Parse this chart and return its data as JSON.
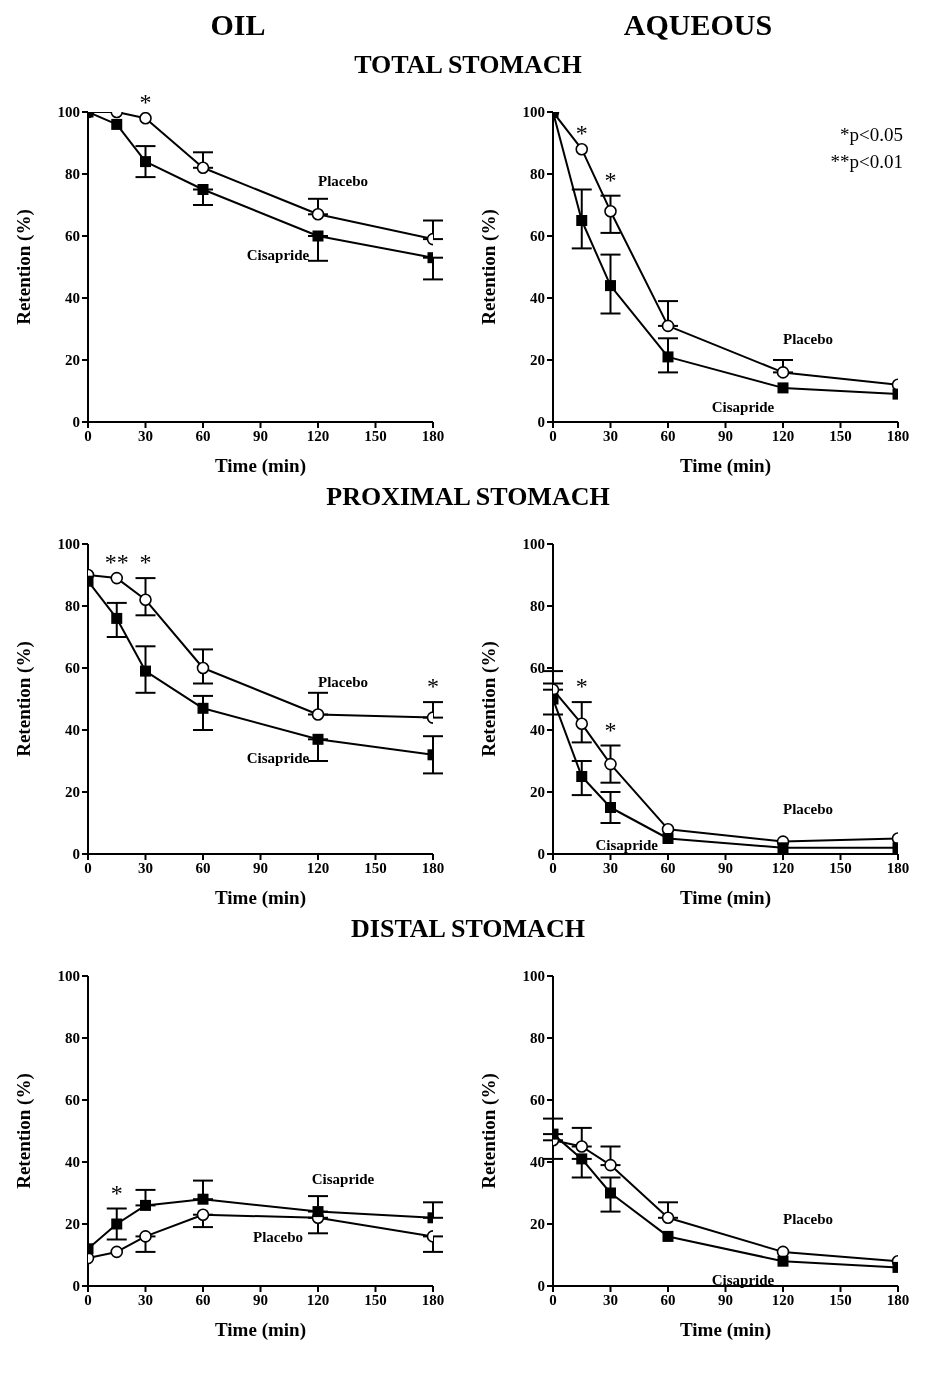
{
  "chart_data": [
    {
      "type": "line",
      "subtitle": "OIL",
      "title": "TOTAL STOMACH",
      "xlabel": "Time (min)",
      "ylabel": "Retention (%)",
      "x": [
        0,
        15,
        30,
        60,
        120,
        180
      ],
      "xlim": [
        0,
        180
      ],
      "xticks": [
        0,
        30,
        60,
        90,
        120,
        150,
        180
      ],
      "ylim": [
        0,
        100
      ],
      "yticks": [
        0,
        20,
        40,
        60,
        80,
        100
      ],
      "series": [
        {
          "name": "Placebo",
          "color": "#000000",
          "marker": "circle",
          "values": [
            100,
            100,
            98,
            82,
            67,
            59
          ],
          "errors": [
            null,
            null,
            null,
            [
              82,
              87
            ],
            [
              67,
              72
            ],
            [
              59,
              65
            ]
          ]
        },
        {
          "name": "Cisapride",
          "color": "#000000",
          "marker": "square",
          "values": [
            100,
            96,
            84,
            75,
            60,
            53
          ],
          "errors": [
            null,
            null,
            [
              79,
              89
            ],
            [
              70,
              75
            ],
            [
              52,
              60
            ],
            [
              46,
              53
            ]
          ]
        }
      ],
      "annotations": [
        {
          "text": "*",
          "x": 30,
          "y": 98
        }
      ]
    },
    {
      "type": "line",
      "subtitle": "AQUEOUS",
      "xlabel": "Time (min)",
      "ylabel": "Retention (%)",
      "x": [
        0,
        15,
        30,
        60,
        120,
        180
      ],
      "xlim": [
        0,
        180
      ],
      "xticks": [
        0,
        30,
        60,
        90,
        120,
        150,
        180
      ],
      "ylim": [
        0,
        100
      ],
      "yticks": [
        0,
        20,
        40,
        60,
        80,
        100
      ],
      "series": [
        {
          "name": "Placebo",
          "color": "#000000",
          "marker": "circle",
          "values": [
            100,
            88,
            68,
            31,
            16,
            12
          ],
          "errors": [
            null,
            null,
            [
              61,
              73
            ],
            [
              31,
              39
            ],
            [
              16,
              20
            ],
            null
          ]
        },
        {
          "name": "Cisapride",
          "color": "#000000",
          "marker": "square",
          "values": [
            100,
            65,
            44,
            21,
            11,
            9
          ],
          "errors": [
            null,
            [
              56,
              75
            ],
            [
              35,
              54
            ],
            [
              16,
              27
            ],
            null,
            null
          ]
        }
      ],
      "annotations": [
        {
          "text": "*",
          "x": 15,
          "y": 88
        },
        {
          "text": "*",
          "x": 30,
          "y": 68
        },
        "*p<0.05",
        "**p<0.01"
      ]
    },
    {
      "type": "line",
      "title": "PROXIMAL STOMACH",
      "xlabel": "Time (min)",
      "ylabel": "Retention (%)",
      "x": [
        0,
        15,
        30,
        60,
        120,
        180
      ],
      "xlim": [
        0,
        180
      ],
      "xticks": [
        0,
        30,
        60,
        90,
        120,
        150,
        180
      ],
      "ylim": [
        0,
        100
      ],
      "yticks": [
        0,
        20,
        40,
        60,
        80,
        100
      ],
      "series": [
        {
          "name": "Placebo",
          "color": "#000000",
          "marker": "circle",
          "values": [
            90,
            89,
            82,
            60,
            45,
            44
          ],
          "errors": [
            null,
            null,
            [
              77,
              89
            ],
            [
              55,
              66
            ],
            [
              45,
              52
            ],
            [
              44,
              49
            ]
          ]
        },
        {
          "name": "Cisapride",
          "color": "#000000",
          "marker": "square",
          "values": [
            88,
            76,
            59,
            47,
            37,
            32
          ],
          "errors": [
            null,
            [
              70,
              81
            ],
            [
              52,
              67
            ],
            [
              40,
              51
            ],
            [
              30,
              37
            ],
            [
              26,
              38
            ]
          ]
        }
      ],
      "annotations": [
        {
          "text": "**",
          "x": 15,
          "y": 89
        },
        {
          "text": "*",
          "x": 30,
          "y": 82
        },
        {
          "text": "*",
          "x": 180,
          "y": 44
        }
      ]
    },
    {
      "type": "line",
      "xlabel": "Time (min)",
      "ylabel": "Retention (%)",
      "x": [
        0,
        15,
        30,
        60,
        120,
        180
      ],
      "xlim": [
        0,
        180
      ],
      "xticks": [
        0,
        30,
        60,
        90,
        120,
        150,
        180
      ],
      "ylim": [
        0,
        100
      ],
      "yticks": [
        0,
        20,
        40,
        60,
        80,
        100
      ],
      "series": [
        {
          "name": "Placebo",
          "color": "#000000",
          "marker": "circle",
          "values": [
            53,
            42,
            29,
            8,
            4,
            5
          ],
          "errors": [
            [
              53,
              59
            ],
            [
              36,
              49
            ],
            [
              23,
              35
            ],
            null,
            null,
            null
          ]
        },
        {
          "name": "Cisapride",
          "color": "#000000",
          "marker": "square",
          "values": [
            50,
            25,
            15,
            5,
            2,
            2
          ],
          "errors": [
            [
              45,
              55
            ],
            [
              19,
              30
            ],
            [
              10,
              20
            ],
            null,
            null,
            null
          ]
        }
      ],
      "annotations": [
        {
          "text": "*",
          "x": 15,
          "y": 42
        },
        {
          "text": "*",
          "x": 30,
          "y": 29
        }
      ]
    },
    {
      "type": "line",
      "title": "DISTAL STOMACH",
      "xlabel": "Time (min)",
      "ylabel": "Retention (%)",
      "x": [
        0,
        15,
        30,
        60,
        120,
        180
      ],
      "xlim": [
        0,
        180
      ],
      "xticks": [
        0,
        30,
        60,
        90,
        120,
        150,
        180
      ],
      "ylim": [
        0,
        100
      ],
      "yticks": [
        0,
        20,
        40,
        60,
        80,
        100
      ],
      "series": [
        {
          "name": "Placebo",
          "color": "#000000",
          "marker": "circle",
          "values": [
            9,
            11,
            16,
            23,
            22,
            16
          ],
          "errors": [
            null,
            null,
            [
              11,
              16
            ],
            [
              19,
              23
            ],
            [
              17,
              22
            ],
            [
              11,
              16
            ]
          ]
        },
        {
          "name": "Cisapride",
          "color": "#000000",
          "marker": "square",
          "values": [
            12,
            20,
            26,
            28,
            24,
            22
          ],
          "errors": [
            null,
            [
              15,
              25
            ],
            [
              26,
              31
            ],
            [
              28,
              34
            ],
            [
              24,
              29
            ],
            [
              22,
              27
            ]
          ]
        }
      ],
      "annotations": [
        {
          "text": "*",
          "x": 15,
          "y": 20
        }
      ]
    },
    {
      "type": "line",
      "xlabel": "Time (min)",
      "ylabel": "Retention (%)",
      "x": [
        0,
        15,
        30,
        60,
        120,
        180
      ],
      "xlim": [
        0,
        180
      ],
      "xticks": [
        0,
        30,
        60,
        90,
        120,
        150,
        180
      ],
      "ylim": [
        0,
        100
      ],
      "yticks": [
        0,
        20,
        40,
        60,
        80,
        100
      ],
      "series": [
        {
          "name": "Placebo",
          "color": "#000000",
          "marker": "circle",
          "values": [
            47,
            45,
            39,
            22,
            11,
            8
          ],
          "errors": [
            [
              41,
              47
            ],
            [
              45,
              51
            ],
            [
              39,
              45
            ],
            [
              22,
              27
            ],
            null,
            null
          ]
        },
        {
          "name": "Cisapride",
          "color": "#000000",
          "marker": "square",
          "values": [
            49,
            41,
            30,
            16,
            8,
            6
          ],
          "errors": [
            [
              49,
              54
            ],
            [
              35,
              41
            ],
            [
              24,
              35
            ],
            null,
            null,
            null
          ]
        }
      ]
    }
  ]
}
